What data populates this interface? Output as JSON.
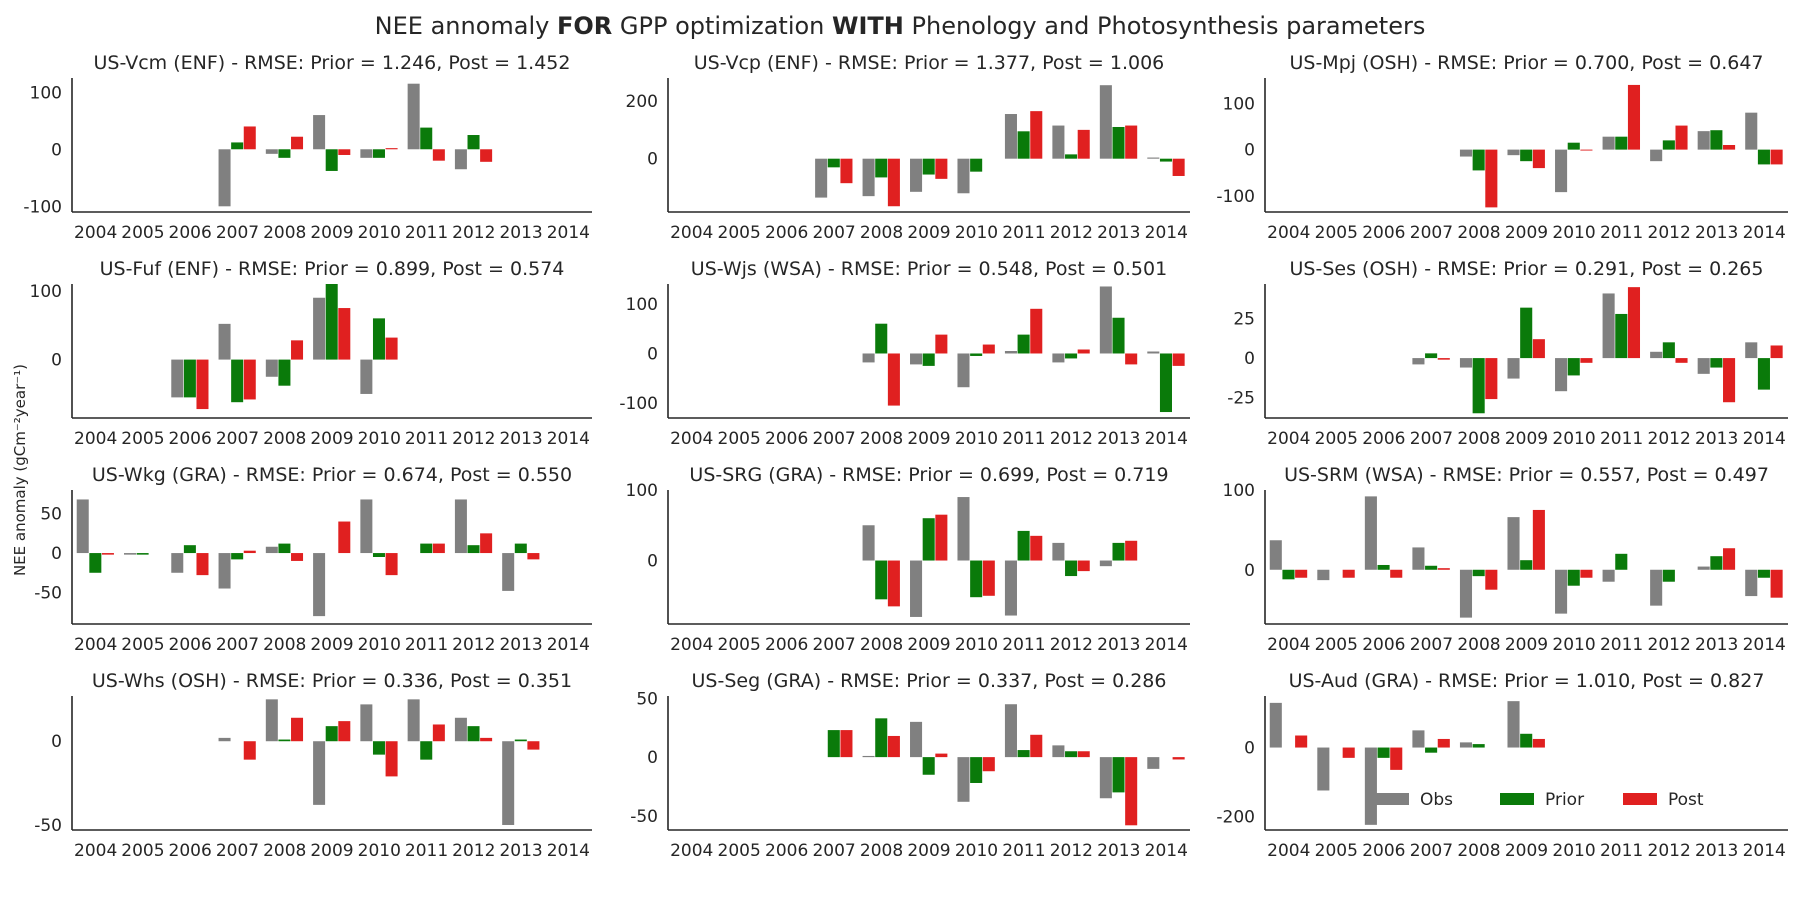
{
  "title_parts": {
    "a": "NEE annomaly ",
    "b": "FOR",
    "c": " GPP optimization ",
    "d": "WITH",
    "e": " Phenology and Photosynthesis parameters"
  },
  "ylabel": "NEE anomaly (gCm⁻²year⁻¹)",
  "colors": {
    "Obs": "#808080",
    "Prior": "#0a7a0a",
    "Post": "#e02020"
  },
  "legend": [
    "Obs",
    "Prior",
    "Post"
  ],
  "chart_data": [
    {
      "type": "bar",
      "title": "US-Vcm (ENF) - RMSE: Prior = 1.246, Post = 1.452",
      "categories": [
        "2004",
        "2005",
        "2006",
        "2007",
        "2008",
        "2009",
        "2010",
        "2011",
        "2012",
        "2013",
        "2014"
      ],
      "ylim": [
        -110,
        125
      ],
      "yticks": [
        -100,
        0,
        100
      ],
      "series": [
        {
          "name": "Obs",
          "values": [
            null,
            null,
            null,
            -100,
            -8,
            60,
            -15,
            115,
            -35,
            null,
            null
          ]
        },
        {
          "name": "Prior",
          "values": [
            null,
            null,
            null,
            12,
            -15,
            -38,
            -15,
            38,
            25,
            null,
            null
          ]
        },
        {
          "name": "Post",
          "values": [
            null,
            null,
            null,
            40,
            22,
            -10,
            2,
            -20,
            -22,
            null,
            null
          ]
        }
      ]
    },
    {
      "type": "bar",
      "title": "US-Vcp (ENF) - RMSE: Prior = 1.377, Post = 1.006",
      "categories": [
        "2004",
        "2005",
        "2006",
        "2007",
        "2008",
        "2009",
        "2010",
        "2011",
        "2012",
        "2013",
        "2014"
      ],
      "ylim": [
        -185,
        280
      ],
      "yticks": [
        0,
        200
      ],
      "series": [
        {
          "name": "Obs",
          "values": [
            null,
            null,
            null,
            -135,
            -130,
            -115,
            -120,
            155,
            115,
            255,
            4
          ]
        },
        {
          "name": "Prior",
          "values": [
            null,
            null,
            null,
            -30,
            -65,
            -55,
            -45,
            95,
            15,
            110,
            -10
          ]
        },
        {
          "name": "Post",
          "values": [
            null,
            null,
            null,
            -85,
            -165,
            -70,
            null,
            165,
            100,
            115,
            -60
          ]
        }
      ]
    },
    {
      "type": "bar",
      "title": "US-Mpj (OSH) - RMSE: Prior = 0.700, Post = 0.647",
      "categories": [
        "2004",
        "2005",
        "2006",
        "2007",
        "2008",
        "2009",
        "2010",
        "2011",
        "2012",
        "2013",
        "2014"
      ],
      "ylim": [
        -135,
        155
      ],
      "yticks": [
        -100,
        0,
        100
      ],
      "series": [
        {
          "name": "Obs",
          "values": [
            null,
            null,
            null,
            null,
            -15,
            -12,
            -92,
            28,
            -25,
            40,
            80
          ]
        },
        {
          "name": "Prior",
          "values": [
            null,
            null,
            null,
            null,
            -45,
            -25,
            15,
            28,
            20,
            42,
            -32
          ]
        },
        {
          "name": "Post",
          "values": [
            null,
            null,
            null,
            null,
            -125,
            -40,
            -2,
            140,
            52,
            10,
            -32
          ]
        }
      ]
    },
    {
      "type": "bar",
      "title": "US-Fuf (ENF) - RMSE: Prior = 0.899, Post = 0.574",
      "categories": [
        "2004",
        "2005",
        "2006",
        "2007",
        "2008",
        "2009",
        "2010",
        "2011",
        "2012",
        "2013",
        "2014"
      ],
      "ylim": [
        -85,
        110
      ],
      "yticks": [
        0,
        100
      ],
      "series": [
        {
          "name": "Obs",
          "values": [
            null,
            null,
            -55,
            52,
            -25,
            90,
            -50,
            null,
            null,
            null,
            null
          ]
        },
        {
          "name": "Prior",
          "values": [
            null,
            null,
            -55,
            -62,
            -38,
            110,
            60,
            null,
            null,
            null,
            null
          ]
        },
        {
          "name": "Post",
          "values": [
            null,
            null,
            -72,
            -58,
            28,
            75,
            32,
            null,
            null,
            null,
            null
          ]
        }
      ]
    },
    {
      "type": "bar",
      "title": "US-Wjs (WSA) - RMSE: Prior = 0.548, Post = 0.501",
      "categories": [
        "2004",
        "2005",
        "2006",
        "2007",
        "2008",
        "2009",
        "2010",
        "2011",
        "2012",
        "2013",
        "2014"
      ],
      "ylim": [
        -130,
        140
      ],
      "yticks": [
        -100,
        0,
        100
      ],
      "series": [
        {
          "name": "Obs",
          "values": [
            null,
            null,
            null,
            null,
            -18,
            -22,
            -68,
            5,
            -18,
            135,
            4
          ]
        },
        {
          "name": "Prior",
          "values": [
            null,
            null,
            null,
            null,
            60,
            -25,
            -5,
            38,
            -10,
            72,
            -118
          ]
        },
        {
          "name": "Post",
          "values": [
            null,
            null,
            null,
            null,
            -105,
            38,
            18,
            90,
            8,
            -22,
            -25
          ]
        }
      ]
    },
    {
      "type": "bar",
      "title": "US-Ses (OSH) - RMSE: Prior = 0.291, Post = 0.265",
      "categories": [
        "2004",
        "2005",
        "2006",
        "2007",
        "2008",
        "2009",
        "2010",
        "2011",
        "2012",
        "2013",
        "2014"
      ],
      "ylim": [
        -38,
        47
      ],
      "yticks": [
        -25,
        0,
        25
      ],
      "series": [
        {
          "name": "Obs",
          "values": [
            null,
            null,
            null,
            -4,
            -6,
            -13,
            -21,
            41,
            4,
            -10,
            10
          ]
        },
        {
          "name": "Prior",
          "values": [
            null,
            null,
            null,
            3,
            -35,
            32,
            -11,
            28,
            10,
            -6,
            -20
          ]
        },
        {
          "name": "Post",
          "values": [
            null,
            null,
            null,
            -1,
            -26,
            12,
            -3,
            45,
            -3,
            -28,
            8
          ]
        }
      ]
    },
    {
      "type": "bar",
      "title": "US-Wkg (GRA) - RMSE: Prior = 0.674, Post = 0.550",
      "categories": [
        "2004",
        "2005",
        "2006",
        "2007",
        "2008",
        "2009",
        "2010",
        "2011",
        "2012",
        "2013",
        "2014"
      ],
      "ylim": [
        -90,
        80
      ],
      "yticks": [
        -50,
        0,
        50
      ],
      "series": [
        {
          "name": "Obs",
          "values": [
            68,
            -2,
            -25,
            -45,
            8,
            -80,
            68,
            null,
            68,
            -48,
            null
          ]
        },
        {
          "name": "Prior",
          "values": [
            -25,
            -2,
            10,
            -8,
            12,
            null,
            -5,
            12,
            10,
            12,
            null
          ]
        },
        {
          "name": "Post",
          "values": [
            -2,
            null,
            -28,
            3,
            -10,
            40,
            -28,
            12,
            25,
            -8,
            null
          ]
        }
      ]
    },
    {
      "type": "bar",
      "title": "US-SRG (GRA) - RMSE: Prior = 0.699, Post = 0.719",
      "categories": [
        "2004",
        "2005",
        "2006",
        "2007",
        "2008",
        "2009",
        "2010",
        "2011",
        "2012",
        "2013",
        "2014"
      ],
      "ylim": [
        -90,
        100
      ],
      "yticks": [
        0,
        100
      ],
      "series": [
        {
          "name": "Obs",
          "values": [
            null,
            null,
            null,
            null,
            50,
            -80,
            90,
            -78,
            25,
            -8,
            null
          ]
        },
        {
          "name": "Prior",
          "values": [
            null,
            null,
            null,
            null,
            -55,
            60,
            -52,
            42,
            -22,
            25,
            null
          ]
        },
        {
          "name": "Post",
          "values": [
            null,
            null,
            null,
            null,
            -65,
            65,
            -50,
            35,
            -15,
            28,
            null
          ]
        }
      ]
    },
    {
      "type": "bar",
      "title": "US-SRM (WSA) - RMSE: Prior = 0.557, Post = 0.497",
      "categories": [
        "2004",
        "2005",
        "2006",
        "2007",
        "2008",
        "2009",
        "2010",
        "2011",
        "2012",
        "2013",
        "2014"
      ],
      "ylim": [
        -68,
        100
      ],
      "yticks": [
        0,
        100
      ],
      "series": [
        {
          "name": "Obs",
          "values": [
            37,
            -13,
            92,
            28,
            -60,
            66,
            -55,
            -15,
            -45,
            4,
            -33
          ]
        },
        {
          "name": "Prior",
          "values": [
            -12,
            null,
            6,
            5,
            -8,
            12,
            -20,
            20,
            -15,
            17,
            -10
          ]
        },
        {
          "name": "Post",
          "values": [
            -10,
            -10,
            -10,
            2,
            -25,
            75,
            -10,
            null,
            null,
            27,
            -35
          ]
        }
      ]
    },
    {
      "type": "bar",
      "title": "US-Whs (OSH) - RMSE: Prior = 0.336, Post = 0.351",
      "categories": [
        "2004",
        "2005",
        "2006",
        "2007",
        "2008",
        "2009",
        "2010",
        "2011",
        "2012",
        "2013",
        "2014"
      ],
      "ylim": [
        -53,
        27
      ],
      "yticks": [
        -50,
        0
      ],
      "series": [
        {
          "name": "Obs",
          "values": [
            null,
            null,
            null,
            2,
            25,
            -38,
            22,
            25,
            14,
            -50,
            null
          ]
        },
        {
          "name": "Prior",
          "values": [
            null,
            null,
            null,
            null,
            1,
            9,
            -8,
            -11,
            9,
            1,
            null
          ]
        },
        {
          "name": "Post",
          "values": [
            null,
            null,
            null,
            -11,
            14,
            12,
            -21,
            10,
            2,
            -5,
            null
          ]
        }
      ]
    },
    {
      "type": "bar",
      "title": "US-Seg (GRA) - RMSE: Prior = 0.337, Post = 0.286",
      "categories": [
        "2004",
        "2005",
        "2006",
        "2007",
        "2008",
        "2009",
        "2010",
        "2011",
        "2012",
        "2013",
        "2014"
      ],
      "ylim": [
        -62,
        52
      ],
      "yticks": [
        -50,
        0,
        50
      ],
      "series": [
        {
          "name": "Obs",
          "values": [
            null,
            null,
            null,
            null,
            1,
            30,
            -38,
            45,
            10,
            -35,
            -10
          ]
        },
        {
          "name": "Prior",
          "values": [
            null,
            null,
            null,
            23,
            33,
            -15,
            -22,
            6,
            5,
            -30,
            null
          ]
        },
        {
          "name": "Post",
          "values": [
            null,
            null,
            null,
            23,
            18,
            3,
            -12,
            19,
            5,
            -58,
            -2
          ]
        }
      ]
    },
    {
      "type": "bar",
      "title": "US-Aud (GRA) - RMSE: Prior = 1.010, Post = 0.827",
      "categories": [
        "2004",
        "2005",
        "2006",
        "2007",
        "2008",
        "2009",
        "2010",
        "2011",
        "2012",
        "2013",
        "2014"
      ],
      "ylim": [
        -240,
        150
      ],
      "yticks": [
        -200,
        0
      ],
      "series": [
        {
          "name": "Obs",
          "values": [
            130,
            -125,
            -225,
            50,
            15,
            135,
            null,
            null,
            null,
            null,
            null
          ]
        },
        {
          "name": "Prior",
          "values": [
            null,
            null,
            -30,
            -15,
            10,
            40,
            null,
            null,
            null,
            null,
            null
          ]
        },
        {
          "name": "Post",
          "values": [
            35,
            -30,
            -65,
            25,
            null,
            25,
            null,
            null,
            null,
            null,
            null
          ]
        }
      ]
    }
  ]
}
